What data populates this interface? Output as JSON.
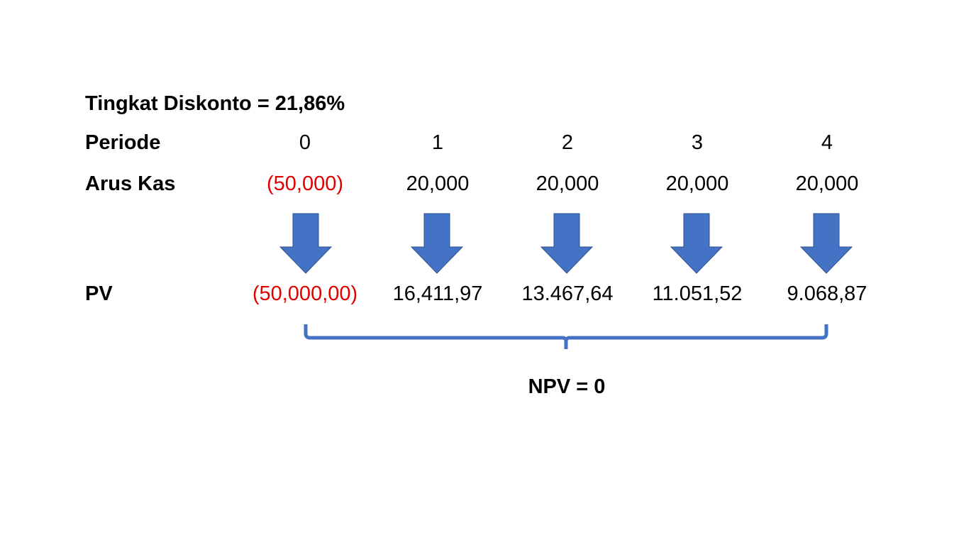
{
  "title": "Tingkat Diskonto = 21,86%",
  "labels": {
    "period": "Periode",
    "cashflow": "Arus Kas",
    "pv": "PV"
  },
  "periods": [
    "0",
    "1",
    "2",
    "3",
    "4"
  ],
  "cashflows": [
    "(50,000)",
    "20,000",
    "20,000",
    "20,000",
    "20,000"
  ],
  "pv_values": [
    "(50,000,00)",
    "16,411,97",
    "13.467,64",
    "11.051,52",
    "9.068,87"
  ],
  "npv": "NPV = 0",
  "colors": {
    "arrow": "#4472C4",
    "negative": "#E00000"
  },
  "icons": {
    "arrow": "down-arrow",
    "brace": "bracket-under"
  }
}
